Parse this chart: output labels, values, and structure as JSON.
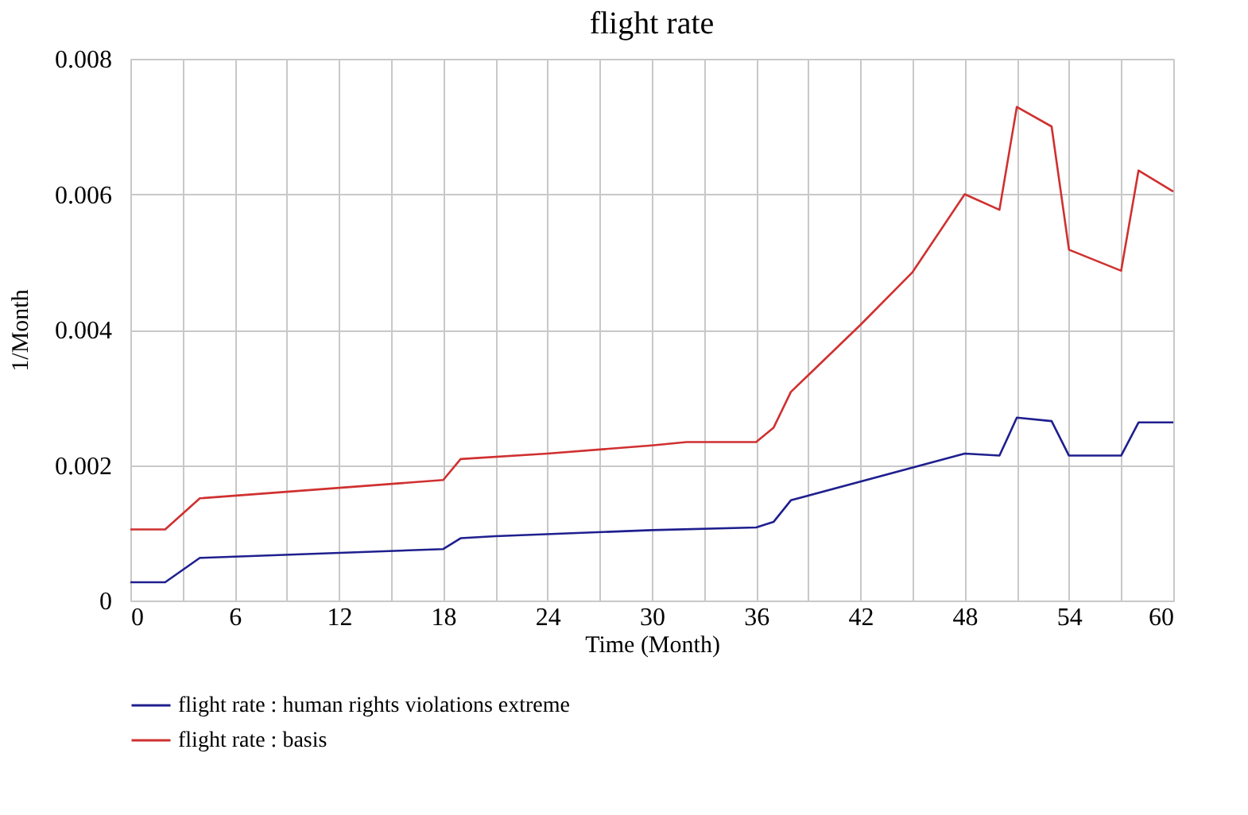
{
  "chart_data": {
    "type": "line",
    "title": "flight rate",
    "xlabel": "Time (Month)",
    "ylabel": "1/Month",
    "xlim": [
      0,
      60
    ],
    "xticks": [
      0,
      {
        "value": 3,
        "label": null
      },
      6,
      {
        "value": 9,
        "label": null
      },
      12,
      {
        "value": 15,
        "label": null
      },
      18,
      {
        "value": 21,
        "label": null
      },
      24,
      {
        "value": 27,
        "label": null
      },
      30,
      {
        "value": 33,
        "label": null
      },
      36,
      {
        "value": 39,
        "label": null
      },
      42,
      {
        "value": 45,
        "label": null
      },
      48,
      {
        "value": 51,
        "label": null
      },
      54,
      {
        "value": 57,
        "label": null
      },
      60
    ],
    "ylim": [
      0,
      0.008
    ],
    "yticks": [
      0,
      0.002,
      0.004,
      0.006,
      0.008
    ],
    "grid": true,
    "legend": "bottom",
    "line_style": "solid",
    "marker": "none",
    "series": [
      {
        "name": "flight rate : human rights violations extreme",
        "color": "#1f1f8f",
        "x": [
          0,
          2,
          4,
          18,
          19,
          21,
          30,
          36,
          37,
          38,
          48,
          50,
          51,
          53,
          54,
          57,
          58,
          60
        ],
        "values": [
          0.00027,
          0.00027,
          0.00063,
          0.00076,
          0.00092,
          0.00095,
          0.00104,
          0.00108,
          0.00116,
          0.00148,
          0.00217,
          0.00214,
          0.0027,
          0.00265,
          0.00214,
          0.00214,
          0.00263,
          0.00263
        ]
      },
      {
        "name": "flight rate : basis",
        "color": "#d03030",
        "x": [
          0,
          2,
          4,
          18,
          19,
          24,
          30,
          32,
          36,
          37,
          38,
          42,
          45,
          48,
          50,
          51,
          53,
          54,
          57,
          58,
          60
        ],
        "values": [
          0.00105,
          0.00105,
          0.00151,
          0.00178,
          0.00209,
          0.00217,
          0.00229,
          0.00234,
          0.00234,
          0.00255,
          0.00308,
          0.00407,
          0.00485,
          0.006,
          0.00577,
          0.00729,
          0.007,
          0.00518,
          0.00487,
          0.00635,
          0.00604
        ]
      }
    ]
  }
}
